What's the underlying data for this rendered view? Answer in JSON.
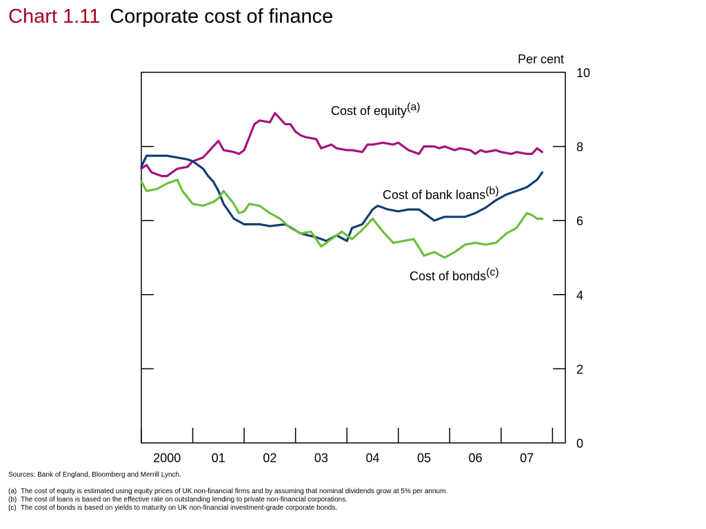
{
  "header": {
    "chart_number": "Chart 1.11",
    "title": "Corporate cost of finance"
  },
  "colors": {
    "title_number": "#a50021",
    "equity": "#a4117d",
    "bank_loans": "#123e72",
    "bonds": "#6cbf3c"
  },
  "chart_data": {
    "type": "line",
    "title": "Corporate cost of finance",
    "ylabel": "Per cent",
    "ylim": [
      0,
      10
    ],
    "yticks": [
      "0",
      "2",
      "4",
      "6",
      "8",
      "10"
    ],
    "x_tick_labels": [
      "2000",
      "01",
      "02",
      "03",
      "04",
      "05",
      "06",
      "07"
    ],
    "grid": false,
    "series": [
      {
        "name": "Cost of equity",
        "footnote": "(a)",
        "x": [
          1999.5,
          1999.6,
          1999.7,
          1999.9,
          2000.0,
          2000.2,
          2000.4,
          2000.5,
          2000.7,
          2000.8,
          2001.0,
          2001.1,
          2001.3,
          2001.4,
          2001.5,
          2001.7,
          2001.8,
          2002.0,
          2002.1,
          2002.3,
          2002.4,
          2002.5,
          2002.6,
          2002.7,
          2002.9,
          2003.0,
          2003.2,
          2003.3,
          2003.5,
          2003.6,
          2003.8,
          2003.9,
          2004.0,
          2004.2,
          2004.4,
          2004.5,
          2004.7,
          2004.9,
          2005.0,
          2005.2,
          2005.3,
          2005.4,
          2005.6,
          2005.7,
          2005.9,
          2006.0,
          2006.1,
          2006.2,
          2006.4,
          2006.5,
          2006.7,
          2006.8,
          2007.0,
          2007.1,
          2007.2,
          2007.3
        ],
        "values": [
          7.4,
          7.5,
          7.3,
          7.2,
          7.2,
          7.4,
          7.45,
          7.6,
          7.7,
          7.85,
          8.15,
          7.9,
          7.85,
          7.8,
          7.9,
          8.6,
          8.7,
          8.65,
          8.9,
          8.6,
          8.6,
          8.4,
          8.3,
          8.25,
          8.2,
          7.95,
          8.05,
          7.95,
          7.9,
          7.9,
          7.85,
          8.05,
          8.05,
          8.1,
          8.05,
          8.1,
          7.9,
          7.8,
          8.0,
          8.0,
          7.95,
          8.0,
          7.9,
          7.95,
          7.9,
          7.8,
          7.9,
          7.85,
          7.9,
          7.85,
          7.8,
          7.85,
          7.8,
          7.8,
          7.95,
          7.85
        ]
      },
      {
        "name": "Cost of bank loans",
        "footnote": "(b)",
        "x": [
          1999.5,
          1999.6,
          1999.8,
          2000.0,
          2000.2,
          2000.4,
          2000.5,
          2000.7,
          2000.8,
          2000.9,
          2001.0,
          2001.1,
          2001.3,
          2001.5,
          2001.8,
          2002.0,
          2002.3,
          2002.6,
          2002.9,
          2003.1,
          2003.3,
          2003.5,
          2003.6,
          2003.8,
          2004.0,
          2004.1,
          2004.3,
          2004.5,
          2004.7,
          2004.9,
          2005.0,
          2005.2,
          2005.4,
          2005.6,
          2005.8,
          2006.0,
          2006.2,
          2006.4,
          2006.6,
          2006.8,
          2007.0,
          2007.2,
          2007.3
        ],
        "values": [
          7.45,
          7.75,
          7.75,
          7.75,
          7.7,
          7.65,
          7.6,
          7.4,
          7.2,
          7.05,
          6.8,
          6.45,
          6.05,
          5.9,
          5.9,
          5.85,
          5.9,
          5.65,
          5.55,
          5.45,
          5.6,
          5.45,
          5.8,
          5.9,
          6.3,
          6.4,
          6.3,
          6.25,
          6.3,
          6.3,
          6.2,
          6.0,
          6.1,
          6.1,
          6.1,
          6.2,
          6.35,
          6.55,
          6.7,
          6.8,
          6.9,
          7.1,
          7.3
        ]
      },
      {
        "name": "Cost of bonds",
        "footnote": "(c)",
        "x": [
          1999.5,
          1999.6,
          1999.8,
          2000.0,
          2000.2,
          2000.3,
          2000.5,
          2000.7,
          2000.9,
          2001.0,
          2001.1,
          2001.3,
          2001.4,
          2001.5,
          2001.6,
          2001.8,
          2002.0,
          2002.2,
          2002.4,
          2002.6,
          2002.8,
          2003.0,
          2003.2,
          2003.4,
          2003.6,
          2003.8,
          2004.0,
          2004.2,
          2004.4,
          2004.6,
          2004.8,
          2005.0,
          2005.2,
          2005.4,
          2005.6,
          2005.8,
          2006.0,
          2006.2,
          2006.4,
          2006.6,
          2006.8,
          2007.0,
          2007.1,
          2007.2,
          2007.3
        ],
        "values": [
          7.05,
          6.8,
          6.85,
          7.0,
          7.1,
          6.8,
          6.45,
          6.4,
          6.5,
          6.6,
          6.8,
          6.45,
          6.2,
          6.25,
          6.45,
          6.4,
          6.2,
          6.05,
          5.8,
          5.65,
          5.7,
          5.3,
          5.5,
          5.7,
          5.5,
          5.75,
          6.05,
          5.7,
          5.4,
          5.45,
          5.5,
          5.05,
          5.15,
          5.0,
          5.15,
          5.35,
          5.4,
          5.35,
          5.4,
          5.65,
          5.8,
          6.2,
          6.15,
          6.05,
          6.05
        ]
      }
    ]
  },
  "footer": {
    "sources": "Sources:  Bank of England, Bloomberg and Merrill Lynch.",
    "notes": [
      {
        "label": "(a)",
        "text": "The cost of equity is estimated using equity prices of UK non-financial firms and by assuming that nominal dividends grow at 5% per annum."
      },
      {
        "label": "(b)",
        "text": "The cost of loans is based on the effective rate on outstanding lending to private non-financial corporations."
      },
      {
        "label": "(c)",
        "text": "The cost of bonds is based on yields to maturity on UK non-financial investment-grade corporate bonds."
      }
    ]
  }
}
